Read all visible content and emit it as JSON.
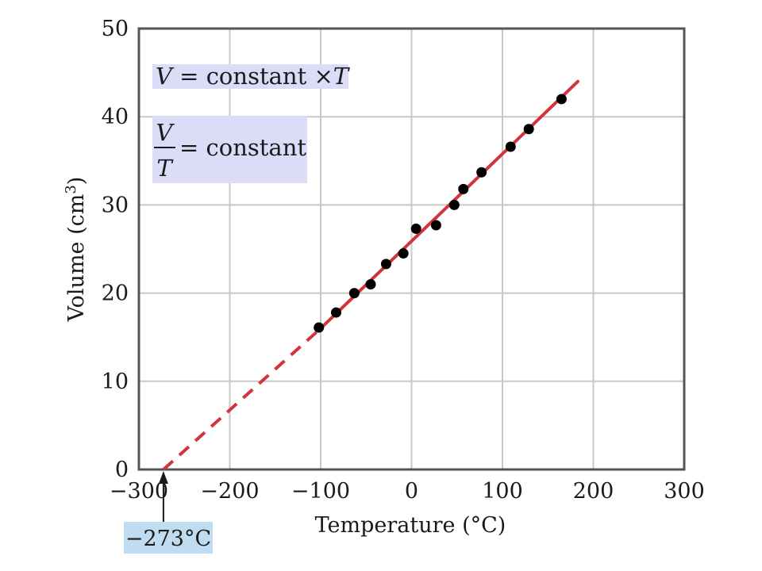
{
  "chart_data": {
    "type": "scatter",
    "title": "",
    "xlabel": "Temperature (°C)",
    "ylabel": "Volume (cm³)",
    "ylabel_base": "Volume (cm",
    "ylabel_sup": "3",
    "ylabel_end": ")",
    "xlim": [
      -300,
      300
    ],
    "ylim": [
      0,
      50
    ],
    "x_ticks": [
      -300,
      -200,
      -100,
      0,
      100,
      200,
      300
    ],
    "x_tick_labels": [
      "−300",
      "−200",
      "−100",
      "0",
      "100",
      "200",
      "300"
    ],
    "y_ticks": [
      0,
      10,
      20,
      30,
      40,
      50
    ],
    "y_tick_labels": [
      "0",
      "10",
      "20",
      "30",
      "40",
      "50"
    ],
    "grid": true,
    "points": [
      {
        "x": -102,
        "y": 16.1
      },
      {
        "x": -83,
        "y": 17.8
      },
      {
        "x": -63,
        "y": 20.0
      },
      {
        "x": -45,
        "y": 21.0
      },
      {
        "x": -28,
        "y": 23.3
      },
      {
        "x": -9,
        "y": 24.5
      },
      {
        "x": 5,
        "y": 27.3
      },
      {
        "x": 27,
        "y": 27.7
      },
      {
        "x": 47,
        "y": 30.0
      },
      {
        "x": 57,
        "y": 31.8
      },
      {
        "x": 77,
        "y": 33.7
      },
      {
        "x": 109,
        "y": 36.6
      },
      {
        "x": 129,
        "y": 38.6
      },
      {
        "x": 165,
        "y": 42.0
      }
    ],
    "fit_line": {
      "color": "#d3343b",
      "solid_from": [
        -100,
        16.0
      ],
      "solid_to": [
        183,
        44.0
      ],
      "dashed_from": [
        -273,
        0
      ],
      "dashed_to": [
        -100,
        16.0
      ]
    },
    "point_color": "#000000",
    "equations": {
      "eq1_lhs": "V",
      "eq1_mid": " = constant ×",
      "eq1_rhs": "T",
      "eq2_num": "V",
      "eq2_den": "T",
      "eq2_rhs": "= constant",
      "box_color": "#dcdcf8"
    },
    "annotation": {
      "label": "−273°C",
      "x": -273,
      "box_color": "#bfdcf0"
    }
  }
}
